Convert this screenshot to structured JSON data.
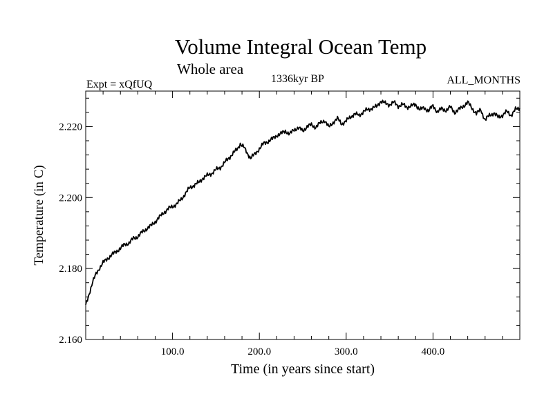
{
  "chart_data": {
    "type": "line",
    "title": "Volume Integral Ocean Temp",
    "subtitle": "Whole area",
    "experiment": "Expt = xQfUQ",
    "period": "1336kyr BP",
    "months": "ALL_MONTHS",
    "xlabel": "Time (in years since start)",
    "ylabel": "Temperature (in C)",
    "xlim": [
      0,
      500
    ],
    "ylim": [
      2.16,
      2.23
    ],
    "xticks": [
      100,
      200,
      300,
      400
    ],
    "xtick_labels": [
      "100.0",
      "200.0",
      "300.0",
      "400.0"
    ],
    "yticks": [
      2.16,
      2.18,
      2.2,
      2.22
    ],
    "ytick_labels": [
      "2.160",
      "2.180",
      "2.200",
      "2.220"
    ],
    "grid": false,
    "series": [
      {
        "name": "Volume Integral Ocean Temp",
        "color": "#000000",
        "x": [
          0,
          2,
          5,
          8,
          12,
          16,
          20,
          25,
          30,
          35,
          40,
          45,
          50,
          55,
          60,
          65,
          70,
          75,
          80,
          85,
          90,
          95,
          100,
          105,
          110,
          115,
          120,
          125,
          130,
          135,
          140,
          145,
          150,
          155,
          160,
          165,
          170,
          175,
          178,
          182,
          186,
          190,
          195,
          200,
          205,
          210,
          215,
          220,
          225,
          230,
          235,
          240,
          245,
          250,
          255,
          260,
          265,
          270,
          275,
          280,
          285,
          290,
          295,
          300,
          305,
          310,
          315,
          320,
          325,
          330,
          335,
          340,
          345,
          350,
          355,
          360,
          365,
          370,
          375,
          380,
          385,
          390,
          395,
          400,
          405,
          410,
          415,
          420,
          425,
          430,
          435,
          440,
          445,
          450,
          455,
          460,
          465,
          470,
          475,
          480,
          485,
          490,
          495,
          500
        ],
        "y": [
          2.1695,
          2.1712,
          2.1738,
          2.1762,
          2.1785,
          2.1802,
          2.1816,
          2.1828,
          2.1838,
          2.1848,
          2.1857,
          2.1868,
          2.1872,
          2.1885,
          2.189,
          2.1902,
          2.1912,
          2.192,
          2.1932,
          2.1945,
          2.1958,
          2.1968,
          2.1975,
          2.1982,
          2.1995,
          2.2012,
          2.2028,
          2.2035,
          2.2042,
          2.2055,
          2.2062,
          2.2068,
          2.2078,
          2.2085,
          2.2098,
          2.2112,
          2.2125,
          2.2138,
          2.2152,
          2.2142,
          2.2125,
          2.2112,
          2.2122,
          2.2138,
          2.2152,
          2.2158,
          2.2165,
          2.2175,
          2.218,
          2.2188,
          2.2178,
          2.2192,
          2.2196,
          2.2188,
          2.22,
          2.2205,
          2.2198,
          2.221,
          2.2218,
          2.2198,
          2.2212,
          2.2222,
          2.2208,
          2.2215,
          2.2228,
          2.2235,
          2.2232,
          2.2242,
          2.2248,
          2.2252,
          2.2256,
          2.2272,
          2.2265,
          2.2262,
          2.2268,
          2.2258,
          2.2262,
          2.2255,
          2.2258,
          2.2262,
          2.2248,
          2.2252,
          2.2245,
          2.2258,
          2.2242,
          2.225,
          2.2246,
          2.2255,
          2.224,
          2.2248,
          2.2258,
          2.2268,
          2.2252,
          2.2236,
          2.2248,
          2.2218,
          2.2232,
          2.2238,
          2.2226,
          2.2232,
          2.2242,
          2.2232,
          2.2248,
          2.2252
        ]
      }
    ]
  }
}
